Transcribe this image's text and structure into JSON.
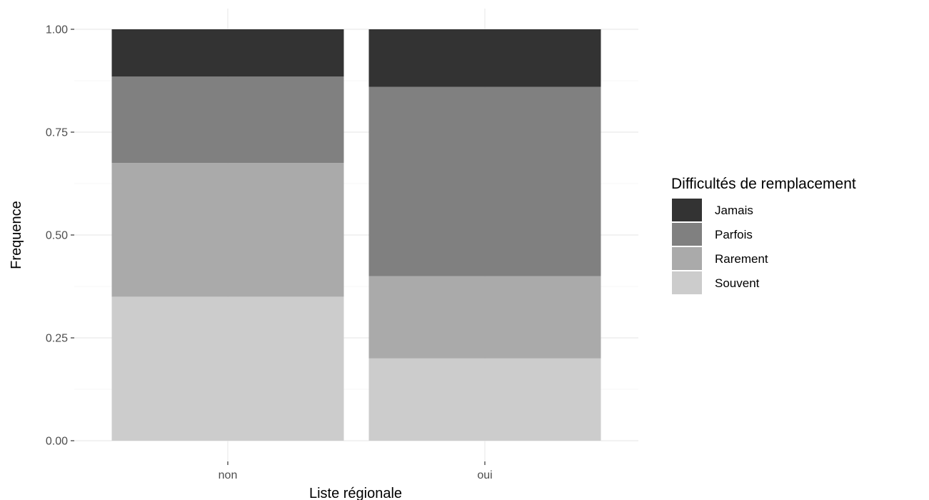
{
  "chart_data": {
    "type": "bar",
    "stacked": true,
    "categories": [
      "non",
      "oui"
    ],
    "series": [
      {
        "name": "Souvent",
        "color": "#cccccc",
        "values": [
          0.35,
          0.2
        ]
      },
      {
        "name": "Rarement",
        "color": "#aaaaaa",
        "values": [
          0.325,
          0.2
        ]
      },
      {
        "name": "Parfois",
        "color": "#808080",
        "values": [
          0.21,
          0.46
        ]
      },
      {
        "name": "Jamais",
        "color": "#333333",
        "values": [
          0.115,
          0.14
        ]
      }
    ],
    "xlabel": "Liste régionale",
    "ylabel": "Frequence",
    "ylim": [
      0,
      1
    ],
    "yticks": [
      0,
      0.25,
      0.5,
      0.75,
      1
    ],
    "ytick_labels": [
      "0.00",
      "0.25",
      "0.50",
      "0.75",
      "1.00"
    ],
    "grid": true,
    "legend": {
      "title": "Difficultés de remplacement",
      "placement": "right",
      "entries": [
        "Jamais",
        "Parfois",
        "Rarement",
        "Souvent"
      ]
    }
  }
}
